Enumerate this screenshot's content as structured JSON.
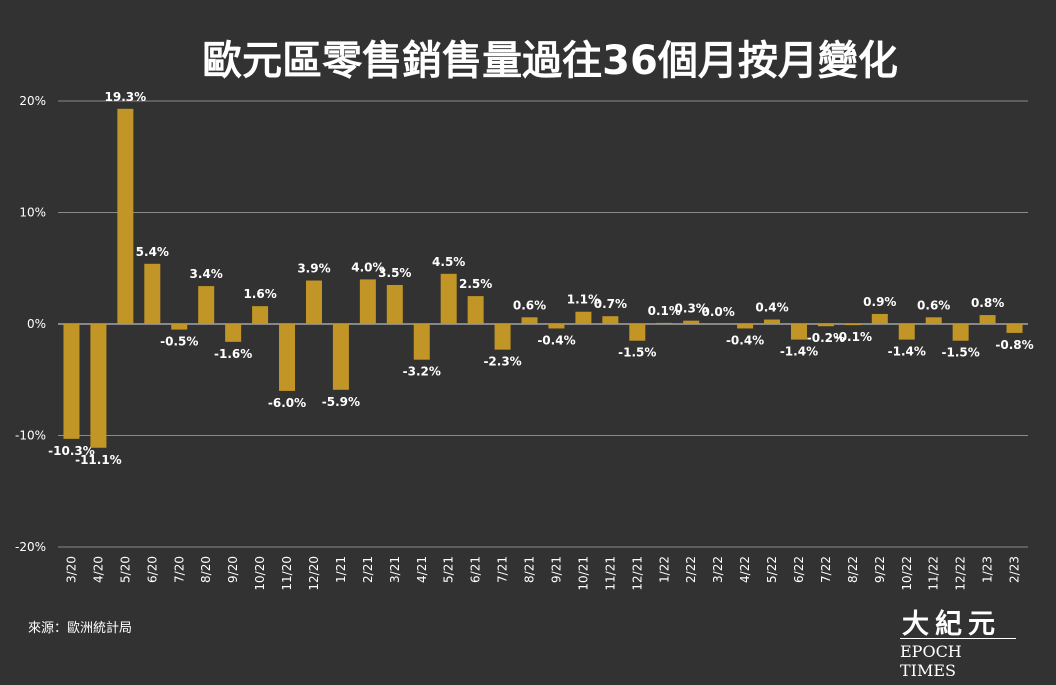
{
  "title": "歐元區零售銷售量過往36個月按月變化",
  "source": "來源：歐洲統計局",
  "logo": {
    "chinese": "大紀元",
    "english": "EPOCH TIMES"
  },
  "colors": {
    "background": "#323232",
    "bar": "#c19627",
    "grid": "#8a8a8a",
    "text": "#ffffff"
  },
  "chart_data": {
    "type": "bar",
    "title": "歐元區零售銷售量過往36個月按月變化",
    "xlabel": "",
    "ylabel": "",
    "ylim": [
      -20,
      20
    ],
    "yticks": [
      20,
      10,
      0,
      -10,
      -20
    ],
    "ytick_labels": [
      "20%",
      "10%",
      "0%",
      "-10%",
      "-20%"
    ],
    "grid": true,
    "categories": [
      "3/20",
      "4/20",
      "5/20",
      "6/20",
      "7/20",
      "8/20",
      "9/20",
      "10/20",
      "11/20",
      "12/20",
      "1/21",
      "2/21",
      "3/21",
      "4/21",
      "5/21",
      "6/21",
      "7/21",
      "8/21",
      "9/21",
      "10/21",
      "11/21",
      "12/21",
      "1/22",
      "2/22",
      "3/22",
      "4/22",
      "5/22",
      "6/22",
      "7/22",
      "8/22",
      "9/22",
      "10/22",
      "11/22",
      "12/22",
      "1/23",
      "2/23"
    ],
    "values": [
      -10.3,
      -11.1,
      19.3,
      5.4,
      -0.5,
      3.4,
      -1.6,
      1.6,
      -6.0,
      3.9,
      -5.9,
      4.0,
      3.5,
      -3.2,
      4.5,
      2.5,
      -2.3,
      0.6,
      -0.4,
      1.1,
      0.7,
      -1.5,
      0.1,
      0.3,
      0.0,
      -0.4,
      0.4,
      -1.4,
      -0.2,
      -0.1,
      0.9,
      -1.4,
      0.6,
      -1.5,
      0.8,
      -0.8
    ],
    "labels": [
      "-10.3%",
      "-11.1%",
      "19.3%",
      "5.4%",
      "-0.5%",
      "3.4%",
      "-1.6%",
      "1.6%",
      "-6.0%",
      "3.9%",
      "-5.9%",
      "4.0%",
      "3.5%",
      "-3.2%",
      "4.5%",
      "2.5%",
      "-2.3%",
      "0.6%",
      "-0.4%",
      "1.1%",
      "0.7%",
      "-1.5%",
      "0.1%",
      "0.3%",
      "0.0%",
      "-0.4%",
      "0.4%",
      "-1.4%",
      "-0.2%",
      "-0.1%",
      "0.9%",
      "-1.4%",
      "0.6%",
      "-1.5%",
      "0.8%",
      "-0.8%"
    ]
  }
}
